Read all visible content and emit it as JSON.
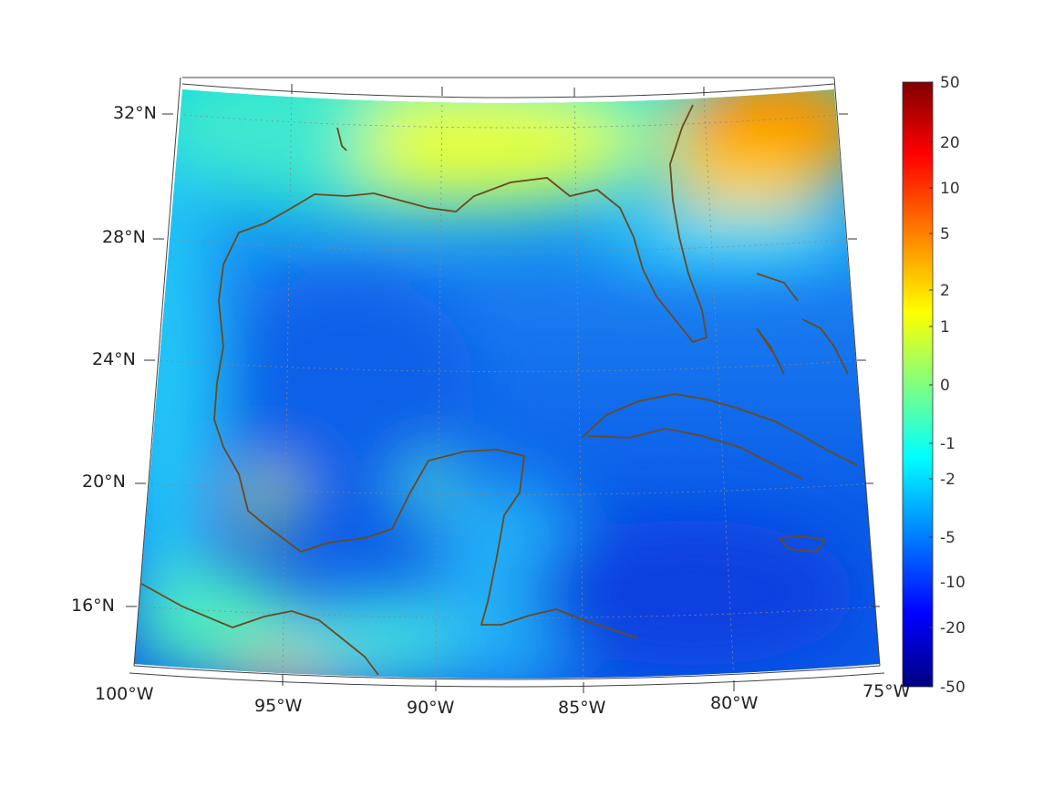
{
  "map": {
    "lon_labels": [
      "100°W",
      "95°W",
      "90°W",
      "85°W",
      "80°W",
      "75°W"
    ],
    "lat_labels": [
      "32°N",
      "28°N",
      "24°N",
      "20°N",
      "16°N"
    ],
    "coastline_color": "#6b4a1e",
    "graticule_color": "#888888",
    "colormap": "jet"
  },
  "colorbar": {
    "ticks": [
      "50",
      "20",
      "10",
      "5",
      "2",
      "1",
      "0",
      "-1",
      "-2",
      "-5",
      "-10",
      "-20",
      "-50"
    ],
    "colors": [
      "#800000",
      "#ff0000",
      "#ff8000",
      "#ffff00",
      "#80ff80",
      "#00ffff",
      "#0080ff",
      "#0000ff",
      "#000080"
    ]
  }
}
